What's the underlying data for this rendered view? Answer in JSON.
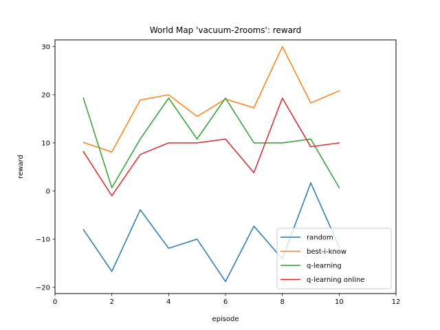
{
  "chart_data": {
    "type": "line",
    "title": "World Map 'vacuum-2rooms': reward",
    "xlabel": "episode",
    "ylabel": "reward",
    "xlim": [
      0,
      12
    ],
    "ylim": [
      -21.3,
      31.4
    ],
    "xticks": [
      0,
      2,
      4,
      6,
      8,
      10,
      12
    ],
    "yticks": [
      -20,
      -10,
      0,
      10,
      20,
      30
    ],
    "grid": false,
    "legend_position": "lower-right",
    "x": [
      1,
      2,
      3,
      4,
      5,
      6,
      7,
      8,
      9,
      10
    ],
    "series": [
      {
        "name": "random",
        "color": "#1f77b4",
        "values": [
          -8.0,
          -16.7,
          -3.9,
          -11.9,
          -10.0,
          -18.8,
          -7.3,
          -14.1,
          1.7,
          -11.6
        ]
      },
      {
        "name": "best-i-know",
        "color": "#ff7f0e",
        "values": [
          10.1,
          8.1,
          18.9,
          20.0,
          15.5,
          19.1,
          17.3,
          30.0,
          18.3,
          20.8
        ]
      },
      {
        "name": "q-learning",
        "color": "#2ca02c",
        "values": [
          19.3,
          0.7,
          10.8,
          19.3,
          10.8,
          19.3,
          10.0,
          10.0,
          10.8,
          0.7
        ]
      },
      {
        "name": "q-learning online",
        "color": "#d62728",
        "values": [
          8.2,
          -1.0,
          7.6,
          10.0,
          10.0,
          10.8,
          3.8,
          19.3,
          9.2,
          10.0
        ]
      }
    ]
  }
}
